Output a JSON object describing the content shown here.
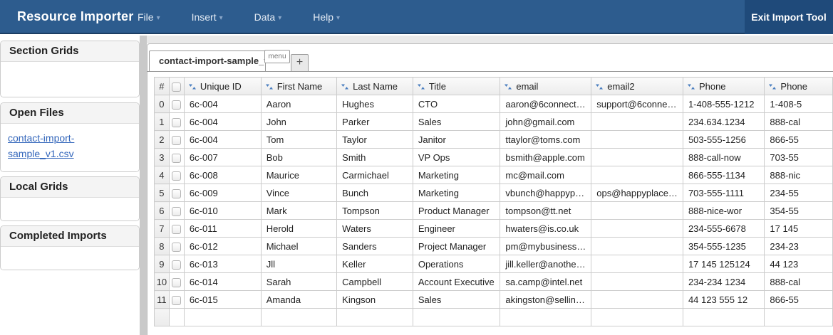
{
  "app": {
    "title": "Resource Importer"
  },
  "topbar": {
    "menus": [
      {
        "label": "File"
      },
      {
        "label": "Insert"
      },
      {
        "label": "Data"
      },
      {
        "label": "Help"
      }
    ],
    "exit_label": "Exit Import Tool"
  },
  "icons": {
    "chevron_down": "▾"
  },
  "sidebar": {
    "sections": [
      {
        "title": "Section Grids"
      },
      {
        "title": "Open Files",
        "link": "contact-import-sample_v1.csv"
      },
      {
        "title": "Local Grids"
      },
      {
        "title": "Completed Imports"
      }
    ]
  },
  "tabbar": {
    "active_tab": "contact-import-sample_v…",
    "menu_button": "menu",
    "add_tab": "+"
  },
  "grid": {
    "corner_label": "#",
    "columns": [
      "Unique ID",
      "First Name",
      "Last Name",
      "Title",
      "email",
      "email2",
      "Phone",
      "Phone"
    ],
    "rows": [
      {
        "n": "0",
        "cells": [
          "6c-004",
          "Aaron",
          "Hughes",
          "CTO",
          "aaron@6connect…",
          "support@6conne…",
          "1-408-555-1212",
          "1-408-5"
        ]
      },
      {
        "n": "1",
        "cells": [
          "6c-004",
          "John",
          "Parker",
          "Sales",
          "john@gmail.com",
          "",
          "234.634.1234",
          "888-cal"
        ]
      },
      {
        "n": "2",
        "cells": [
          "6c-004",
          "Tom",
          "Taylor",
          "Janitor",
          "ttaylor@toms.com",
          "",
          "503-555-1256",
          "866-55"
        ]
      },
      {
        "n": "3",
        "cells": [
          "6c-007",
          "Bob",
          "Smith",
          "VP Ops",
          "bsmith@apple.com",
          "",
          "888-call-now",
          "703-55"
        ]
      },
      {
        "n": "4",
        "cells": [
          "6c-008",
          "Maurice",
          "Carmichael",
          "Marketing",
          "mc@mail.com",
          "",
          "866-555-1134",
          "888-nic"
        ]
      },
      {
        "n": "5",
        "cells": [
          "6c-009",
          "Vince",
          "Bunch",
          "Marketing",
          "vbunch@happyp…",
          "ops@happyplace…",
          "703-555-1111",
          "234-55"
        ]
      },
      {
        "n": "6",
        "cells": [
          "6c-010",
          "Mark",
          "Tompson",
          "Product Manager",
          "tompson@tt.net",
          "",
          "888-nice-wor",
          "354-55"
        ]
      },
      {
        "n": "7",
        "cells": [
          "6c-011",
          "Herold",
          "Waters",
          "Engineer",
          "hwaters@is.co.uk",
          "",
          "234-555-6678",
          "17 145"
        ]
      },
      {
        "n": "8",
        "cells": [
          "6c-012",
          "Michael",
          "Sanders",
          "Project Manager",
          "pm@mybusiness…",
          "",
          "354-555-1235",
          "234-23"
        ]
      },
      {
        "n": "9",
        "cells": [
          "6c-013",
          "Jll",
          "Keller",
          "Operations",
          "jill.keller@anothe…",
          "",
          "17 145 125124",
          "44 123"
        ]
      },
      {
        "n": "10",
        "cells": [
          "6c-014",
          "Sarah",
          "Campbell",
          "Account Executive",
          "sa.camp@intel.net",
          "",
          "234-234 1234",
          "888-cal"
        ]
      },
      {
        "n": "11",
        "cells": [
          "6c-015",
          "Amanda",
          "Kingson",
          "Sales",
          "akingston@sellin…",
          "",
          "44 123 555 12",
          "866-55"
        ]
      }
    ]
  },
  "colors": {
    "header_bar": "#2d5c8e",
    "exit_button_bg": "#1f4a7a",
    "sort_icon": "#4a7ec0",
    "link": "#3366bb"
  }
}
